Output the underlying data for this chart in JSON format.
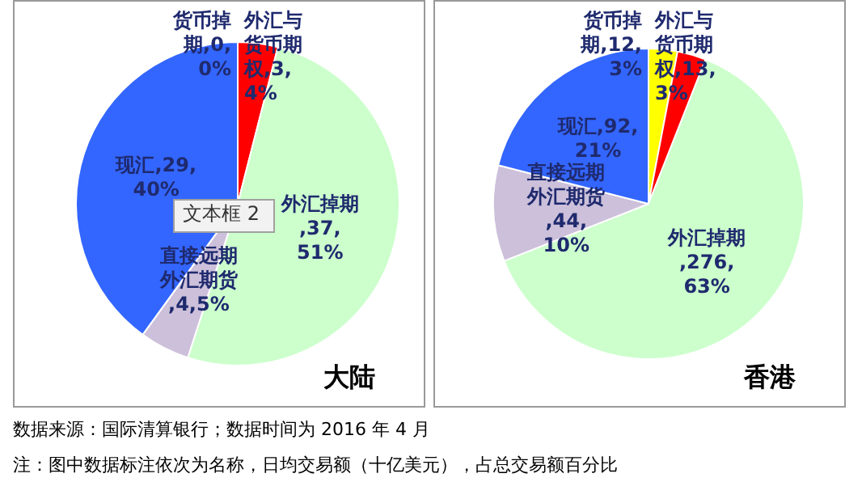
{
  "chart_data": [
    {
      "type": "pie",
      "title": "大陆",
      "categories": [
        "货币掉期,0",
        "外汇与货币期权,3",
        "外汇掉期,37",
        "直接远期外汇期货,4",
        "现汇,29"
      ],
      "values": [
        0,
        4,
        51,
        5,
        40
      ],
      "value_labels": [
        ",0%",
        ",4%",
        ",51%",
        ",5%",
        ",40%"
      ],
      "colors": [
        "#ffff00",
        "#ff0000",
        "#ccffcc",
        "#ccc0da",
        "#3366ff"
      ],
      "legend": false,
      "annotations": [
        "文本框 2",
        "数据来源：国际清算银行；数据时间为 2016 年 4 月",
        "注：图中数据标注依次为名称，日均交易额（十亿美元），占总交易额百分比"
      ]
    },
    {
      "type": "pie",
      "title": "香港",
      "categories": [
        "货币掉期,12",
        "外汇与货币期权,13",
        "外汇掉期,276",
        "直接远期外汇期货,44",
        "现汇,92"
      ],
      "values": [
        3,
        3,
        63,
        10,
        21
      ],
      "value_labels": [
        ",3%",
        ",3%",
        ",63%",
        ",10%",
        ",21%"
      ],
      "colors": [
        "#ffff00",
        "#ff0000",
        "#ccffcc",
        "#ccc0da",
        "#3366ff"
      ],
      "legend": false
    }
  ]
}
